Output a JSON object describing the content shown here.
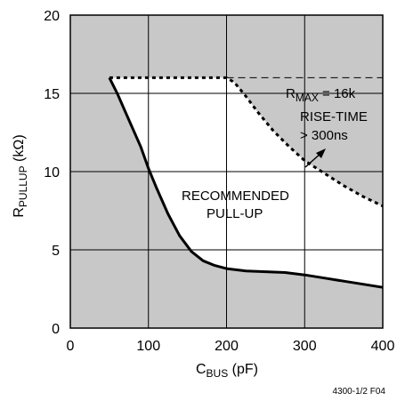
{
  "chart_data": {
    "type": "line",
    "title": "",
    "xlabel": {
      "main": "C",
      "sub": "BUS",
      "unit": " (pF)"
    },
    "ylabel": {
      "main": "R",
      "sub": "PULLUP",
      "unit": " (kΩ)"
    },
    "xlim": [
      0,
      400
    ],
    "ylim": [
      0,
      20
    ],
    "x_ticks": [
      0,
      100,
      200,
      300,
      400
    ],
    "x_tick_labels": [
      "0",
      "100",
      "200",
      "300",
      "400"
    ],
    "y_ticks": [
      0,
      5,
      10,
      15,
      20
    ],
    "y_tick_labels": [
      "0",
      "5",
      "10",
      "15",
      "20"
    ],
    "grid": true,
    "background_color": "#c8c8c8",
    "recommended_fill": "#ffffff",
    "series": [
      {
        "style": "solid",
        "x": [
          50,
          60,
          75,
          90,
          100,
          110,
          125,
          140,
          155,
          170,
          185,
          200,
          225,
          250,
          275,
          300,
          325,
          350,
          375,
          400
        ],
        "y": [
          16,
          15,
          13.3,
          11.6,
          10.2,
          9.0,
          7.3,
          5.9,
          4.9,
          4.3,
          4.0,
          3.8,
          3.65,
          3.6,
          3.55,
          3.4,
          3.2,
          3.0,
          2.8,
          2.6
        ]
      },
      {
        "style": "dotted",
        "x": [
          50,
          100,
          150,
          200,
          210,
          225,
          240,
          260,
          280,
          300,
          325,
          350,
          375,
          400
        ],
        "y": [
          16,
          16,
          16,
          16,
          15.7,
          14.8,
          13.8,
          12.6,
          11.6,
          10.7,
          9.9,
          9.1,
          8.4,
          7.8
        ]
      },
      {
        "style": "dashed",
        "x": [
          200,
          400
        ],
        "y": [
          16,
          16
        ]
      }
    ],
    "annotations": [
      {
        "id": "rmax",
        "main": "R",
        "sub": "MAX",
        "rest": " = 16k"
      },
      {
        "id": "rise1",
        "text": "RISE-TIME"
      },
      {
        "id": "rise2",
        "text": "> 300ns"
      },
      {
        "id": "rec1",
        "text": "RECOMMENDED"
      },
      {
        "id": "rec2",
        "text": "PULL-UP"
      }
    ],
    "figure_number": "4300-1/2 F04"
  }
}
